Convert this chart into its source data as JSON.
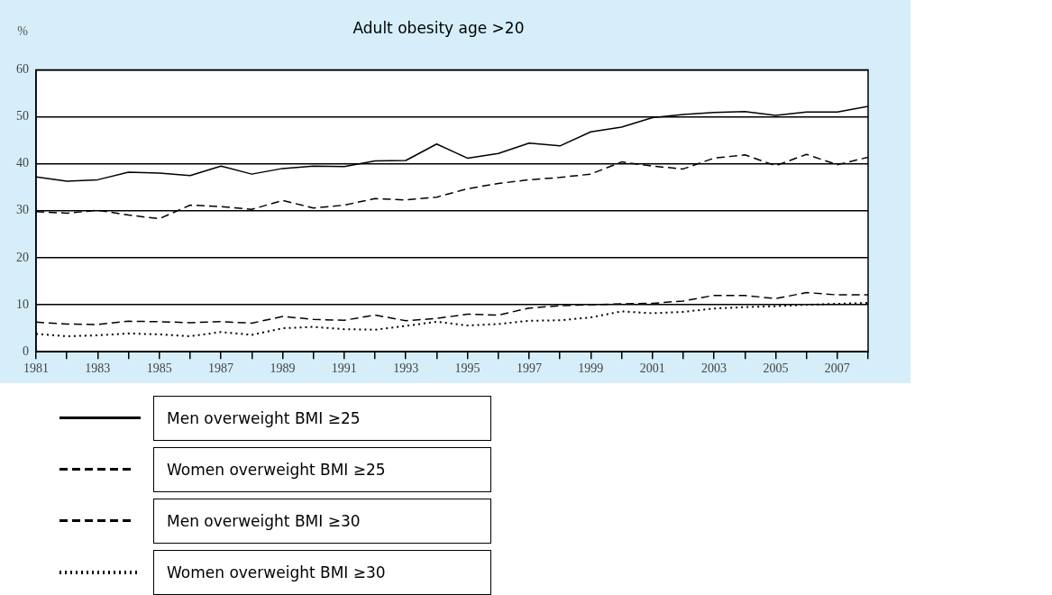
{
  "chart_data": {
    "type": "line",
    "title": "Adult obesity age >20",
    "ylabel": "%",
    "x": [
      1981,
      1982,
      1983,
      1984,
      1985,
      1986,
      1987,
      1988,
      1989,
      1990,
      1991,
      1992,
      1993,
      1994,
      1995,
      1996,
      1997,
      1998,
      1999,
      2000,
      2001,
      2002,
      2003,
      2004,
      2005,
      2006,
      2007,
      2008
    ],
    "series": [
      {
        "name": "Men overweight BMI ≥25",
        "color": "#000000",
        "line_style": "solid",
        "values": [
          37.2,
          36.3,
          36.6,
          38.2,
          38.0,
          37.5,
          39.5,
          37.8,
          39.0,
          39.5,
          39.4,
          40.6,
          40.7,
          44.2,
          41.2,
          42.2,
          44.4,
          43.8,
          46.8,
          47.8,
          49.8,
          50.5,
          50.9,
          51.1,
          50.3,
          51.0,
          51.0,
          52.2
        ]
      },
      {
        "name": "Women overweight BMI ≥25",
        "color": "#000000",
        "line_style": "dashed",
        "values": [
          29.8,
          29.5,
          30.1,
          29.1,
          28.3,
          31.2,
          30.9,
          30.3,
          32.2,
          30.6,
          31.2,
          32.6,
          32.3,
          32.9,
          34.7,
          35.8,
          36.6,
          37.1,
          37.8,
          40.4,
          39.5,
          38.9,
          41.2,
          41.9,
          39.6,
          42.0,
          39.8,
          41.4
        ]
      },
      {
        "name": "Men overweight BMI ≥30",
        "color": "#000000",
        "line_style": "dashed",
        "values": [
          6.3,
          5.9,
          5.8,
          6.5,
          6.4,
          6.2,
          6.4,
          6.1,
          7.5,
          6.9,
          6.7,
          7.8,
          6.6,
          7.1,
          8.0,
          7.8,
          9.3,
          9.8,
          10.0,
          10.2,
          10.3,
          10.8,
          12.0,
          12.0,
          11.3,
          12.6,
          12.1,
          12.1
        ]
      },
      {
        "name": "Women overweight BMI ≥30",
        "color": "#000000",
        "line_style": "dotted",
        "values": [
          3.8,
          3.3,
          3.5,
          3.9,
          3.7,
          3.3,
          4.2,
          3.6,
          5.0,
          5.3,
          4.8,
          4.7,
          5.5,
          6.4,
          5.6,
          5.9,
          6.6,
          6.7,
          7.3,
          8.6,
          8.2,
          8.5,
          9.2,
          9.5,
          9.7,
          10.0,
          10.2,
          10.4
        ]
      }
    ],
    "xlim": [
      1981,
      2008
    ],
    "xticks": [
      1981,
      {
        "value": 1982,
        "label": null
      },
      1983,
      {
        "value": 1984,
        "label": null
      },
      1985,
      {
        "value": 1986,
        "label": null
      },
      1987,
      {
        "value": 1988,
        "label": null
      },
      1989,
      {
        "value": 1990,
        "label": null
      },
      1991,
      {
        "value": 1992,
        "label": null
      },
      1993,
      {
        "value": 1994,
        "label": null
      },
      1995,
      {
        "value": 1996,
        "label": null
      },
      1997,
      {
        "value": 1998,
        "label": null
      },
      1999,
      {
        "value": 2000,
        "label": null
      },
      2001,
      {
        "value": 2002,
        "label": null
      },
      2003,
      {
        "value": 2004,
        "label": null
      },
      2005,
      {
        "value": 2006,
        "label": null
      },
      2007,
      {
        "value": 2008,
        "label": null
      }
    ],
    "ylim": [
      0,
      60
    ],
    "yticks": [
      0,
      10,
      20,
      30,
      40,
      50,
      60
    ],
    "grid": "y",
    "legend": "bottom",
    "marker": "none"
  }
}
